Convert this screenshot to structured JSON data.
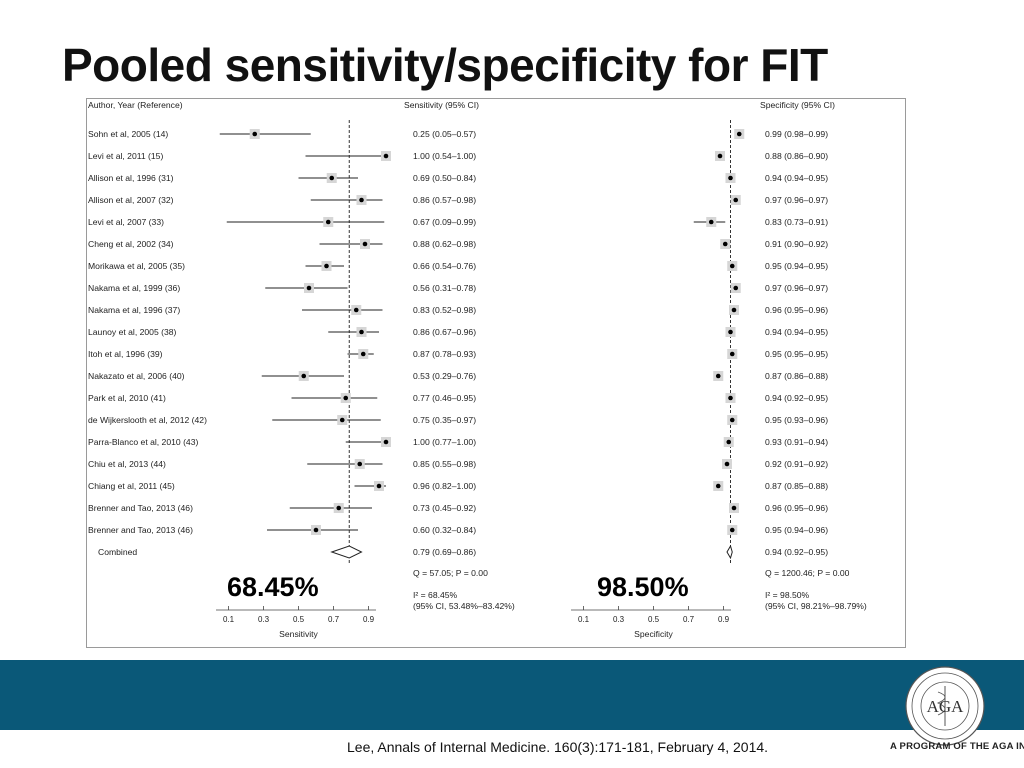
{
  "slide": {
    "title": "Pooled sensitivity/specificity for FIT",
    "citation": "Lee, Annals of Internal Medicine. 160(3):171-181, February 4, 2014.",
    "program_text": "A PROGRAM OF THE AGA INSTITUTE",
    "logo_initials": "AGA",
    "colors": {
      "band": "#0a5878",
      "marker_box": "#d6d6d6",
      "text": "#222222"
    }
  },
  "chart_data": {
    "type": "forest",
    "headers": {
      "author": "Author, Year (Reference)",
      "sensitivity": "Sensitivity (95% CI)",
      "specificity": "Specificity (95% CI)"
    },
    "xlabel_sensitivity": "Sensitivity",
    "xlabel_specificity": "Specificity",
    "ticks": [
      "0.1",
      "0.3",
      "0.5",
      "0.7",
      "0.9"
    ],
    "xlim": [
      0.0,
      1.0
    ],
    "studies": [
      {
        "author": "Sohn et al, 2005 (14)",
        "sens": 0.25,
        "sens_lo": 0.05,
        "sens_hi": 0.57,
        "sens_text": "0.25 (0.05–0.57)",
        "spec": 0.99,
        "spec_lo": 0.98,
        "spec_hi": 0.99,
        "spec_text": "0.99 (0.98–0.99)"
      },
      {
        "author": "Levi et al, 2011 (15)",
        "sens": 1.0,
        "sens_lo": 0.54,
        "sens_hi": 1.0,
        "sens_text": "1.00 (0.54–1.00)",
        "spec": 0.88,
        "spec_lo": 0.86,
        "spec_hi": 0.9,
        "spec_text": "0.88 (0.86–0.90)"
      },
      {
        "author": "Allison et al, 1996 (31)",
        "sens": 0.69,
        "sens_lo": 0.5,
        "sens_hi": 0.84,
        "sens_text": "0.69 (0.50–0.84)",
        "spec": 0.94,
        "spec_lo": 0.94,
        "spec_hi": 0.95,
        "spec_text": "0.94 (0.94–0.95)"
      },
      {
        "author": "Allison et al, 2007 (32)",
        "sens": 0.86,
        "sens_lo": 0.57,
        "sens_hi": 0.98,
        "sens_text": "0.86 (0.57–0.98)",
        "spec": 0.97,
        "spec_lo": 0.96,
        "spec_hi": 0.97,
        "spec_text": "0.97 (0.96–0.97)"
      },
      {
        "author": "Levi et al, 2007 (33)",
        "sens": 0.67,
        "sens_lo": 0.09,
        "sens_hi": 0.99,
        "sens_text": "0.67 (0.09–0.99)",
        "spec": 0.83,
        "spec_lo": 0.73,
        "spec_hi": 0.91,
        "spec_text": "0.83 (0.73–0.91)"
      },
      {
        "author": "Cheng et al, 2002 (34)",
        "sens": 0.88,
        "sens_lo": 0.62,
        "sens_hi": 0.98,
        "sens_text": "0.88 (0.62–0.98)",
        "spec": 0.91,
        "spec_lo": 0.9,
        "spec_hi": 0.92,
        "spec_text": "0.91 (0.90–0.92)"
      },
      {
        "author": "Morikawa et al, 2005 (35)",
        "sens": 0.66,
        "sens_lo": 0.54,
        "sens_hi": 0.76,
        "sens_text": "0.66 (0.54–0.76)",
        "spec": 0.95,
        "spec_lo": 0.94,
        "spec_hi": 0.95,
        "spec_text": "0.95 (0.94–0.95)"
      },
      {
        "author": "Nakama et al, 1999 (36)",
        "sens": 0.56,
        "sens_lo": 0.31,
        "sens_hi": 0.78,
        "sens_text": "0.56 (0.31–0.78)",
        "spec": 0.97,
        "spec_lo": 0.96,
        "spec_hi": 0.97,
        "spec_text": "0.97 (0.96–0.97)"
      },
      {
        "author": "Nakama et al, 1996 (37)",
        "sens": 0.83,
        "sens_lo": 0.52,
        "sens_hi": 0.98,
        "sens_text": "0.83 (0.52–0.98)",
        "spec": 0.96,
        "spec_lo": 0.95,
        "spec_hi": 0.96,
        "spec_text": "0.96 (0.95–0.96)"
      },
      {
        "author": "Launoy et al, 2005 (38)",
        "sens": 0.86,
        "sens_lo": 0.67,
        "sens_hi": 0.96,
        "sens_text": "0.86 (0.67–0.96)",
        "spec": 0.94,
        "spec_lo": 0.94,
        "spec_hi": 0.95,
        "spec_text": "0.94 (0.94–0.95)"
      },
      {
        "author": "Itoh et al, 1996 (39)",
        "sens": 0.87,
        "sens_lo": 0.78,
        "sens_hi": 0.93,
        "sens_text": "0.87 (0.78–0.93)",
        "spec": 0.95,
        "spec_lo": 0.95,
        "spec_hi": 0.95,
        "spec_text": "0.95 (0.95–0.95)"
      },
      {
        "author": "Nakazato et al, 2006 (40)",
        "sens": 0.53,
        "sens_lo": 0.29,
        "sens_hi": 0.76,
        "sens_text": "0.53 (0.29–0.76)",
        "spec": 0.87,
        "spec_lo": 0.86,
        "spec_hi": 0.88,
        "spec_text": "0.87 (0.86–0.88)"
      },
      {
        "author": "Park et al, 2010 (41)",
        "sens": 0.77,
        "sens_lo": 0.46,
        "sens_hi": 0.95,
        "sens_text": "0.77 (0.46–0.95)",
        "spec": 0.94,
        "spec_lo": 0.92,
        "spec_hi": 0.95,
        "spec_text": "0.94 (0.92–0.95)"
      },
      {
        "author": "de Wijkerslooth et al, 2012 (42)",
        "sens": 0.75,
        "sens_lo": 0.35,
        "sens_hi": 0.97,
        "sens_text": "0.75 (0.35–0.97)",
        "spec": 0.95,
        "spec_lo": 0.93,
        "spec_hi": 0.96,
        "spec_text": "0.95 (0.93–0.96)"
      },
      {
        "author": "Parra-Blanco et al, 2010 (43)",
        "sens": 1.0,
        "sens_lo": 0.77,
        "sens_hi": 1.0,
        "sens_text": "1.00 (0.77–1.00)",
        "spec": 0.93,
        "spec_lo": 0.91,
        "spec_hi": 0.94,
        "spec_text": "0.93 (0.91–0.94)"
      },
      {
        "author": "Chiu et al, 2013 (44)",
        "sens": 0.85,
        "sens_lo": 0.55,
        "sens_hi": 0.98,
        "sens_text": "0.85 (0.55–0.98)",
        "spec": 0.92,
        "spec_lo": 0.91,
        "spec_hi": 0.92,
        "spec_text": "0.92 (0.91–0.92)"
      },
      {
        "author": "Chiang et al, 2011 (45)",
        "sens": 0.96,
        "sens_lo": 0.82,
        "sens_hi": 1.0,
        "sens_text": "0.96 (0.82–1.00)",
        "spec": 0.87,
        "spec_lo": 0.85,
        "spec_hi": 0.88,
        "spec_text": "0.87 (0.85–0.88)"
      },
      {
        "author": "Brenner and Tao, 2013 (46)",
        "sens": 0.73,
        "sens_lo": 0.45,
        "sens_hi": 0.92,
        "sens_text": "0.73 (0.45–0.92)",
        "spec": 0.96,
        "spec_lo": 0.95,
        "spec_hi": 0.96,
        "spec_text": "0.96 (0.95–0.96)"
      },
      {
        "author": "Brenner and Tao, 2013 (46)",
        "sens": 0.6,
        "sens_lo": 0.32,
        "sens_hi": 0.84,
        "sens_text": "0.60 (0.32–0.84)",
        "spec": 0.95,
        "spec_lo": 0.94,
        "spec_hi": 0.96,
        "spec_text": "0.95 (0.94–0.96)"
      }
    ],
    "combined": {
      "label": "Combined",
      "sens": 0.79,
      "sens_lo": 0.69,
      "sens_hi": 0.86,
      "sens_text": "0.79 (0.69–0.86)",
      "spec": 0.94,
      "spec_lo": 0.92,
      "spec_hi": 0.95,
      "spec_text": "0.94 (0.92–0.95)"
    },
    "heterogeneity": {
      "sens_q": "Q = 57.05; P = 0.00",
      "sens_i2": "I² = 68.45%",
      "sens_ci": "(95% CI, 53.48%–83.42%)",
      "spec_q": "Q = 1200.46; P = 0.00",
      "spec_i2": "I² = 98.50%",
      "spec_ci": "(95% CI, 98.21%–98.79%)"
    },
    "callouts": {
      "sensitivity_i2": "68.45%",
      "specificity_i2": "98.50%"
    }
  }
}
